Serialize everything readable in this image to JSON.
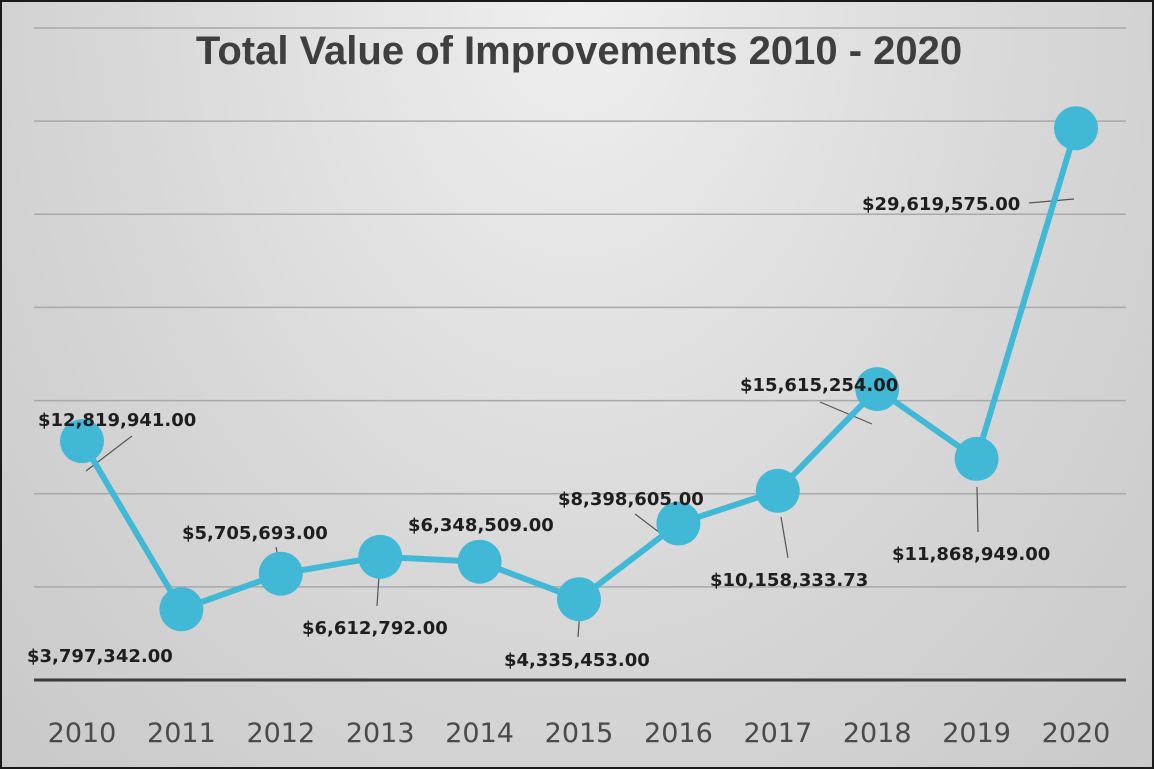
{
  "chart_data": {
    "type": "line",
    "title": "Total Value of Improvements 2010 - 2020",
    "xlabel": "",
    "ylabel": "",
    "categories": [
      "2010",
      "2011",
      "2012",
      "2013",
      "2014",
      "2015",
      "2016",
      "2017",
      "2018",
      "2019",
      "2020"
    ],
    "series": [
      {
        "values": [
          12819941.0,
          3797342.0,
          5705693.0,
          6612792.0,
          6348509.0,
          4335453.0,
          8398605.0,
          10158333.73,
          15615254.0,
          11868949.0,
          29619575.0
        ],
        "data_labels": [
          "$12,819,941.00",
          "$3,797,342.00",
          "$5,705,693.00",
          "$6,612,792.00",
          "$6,348,509.00",
          "$4,335,453.00",
          "$8,398,605.00",
          "$10,158,333.73",
          "$15,615,254.00",
          "$11,868,949.00",
          "$29,619,575.00"
        ],
        "color": "#41B8D5"
      }
    ],
    "ylim": [
      0,
      35000000
    ],
    "y_gridline_step": 5000000,
    "grid": true,
    "legend": "none",
    "background": "gray-gradient"
  }
}
